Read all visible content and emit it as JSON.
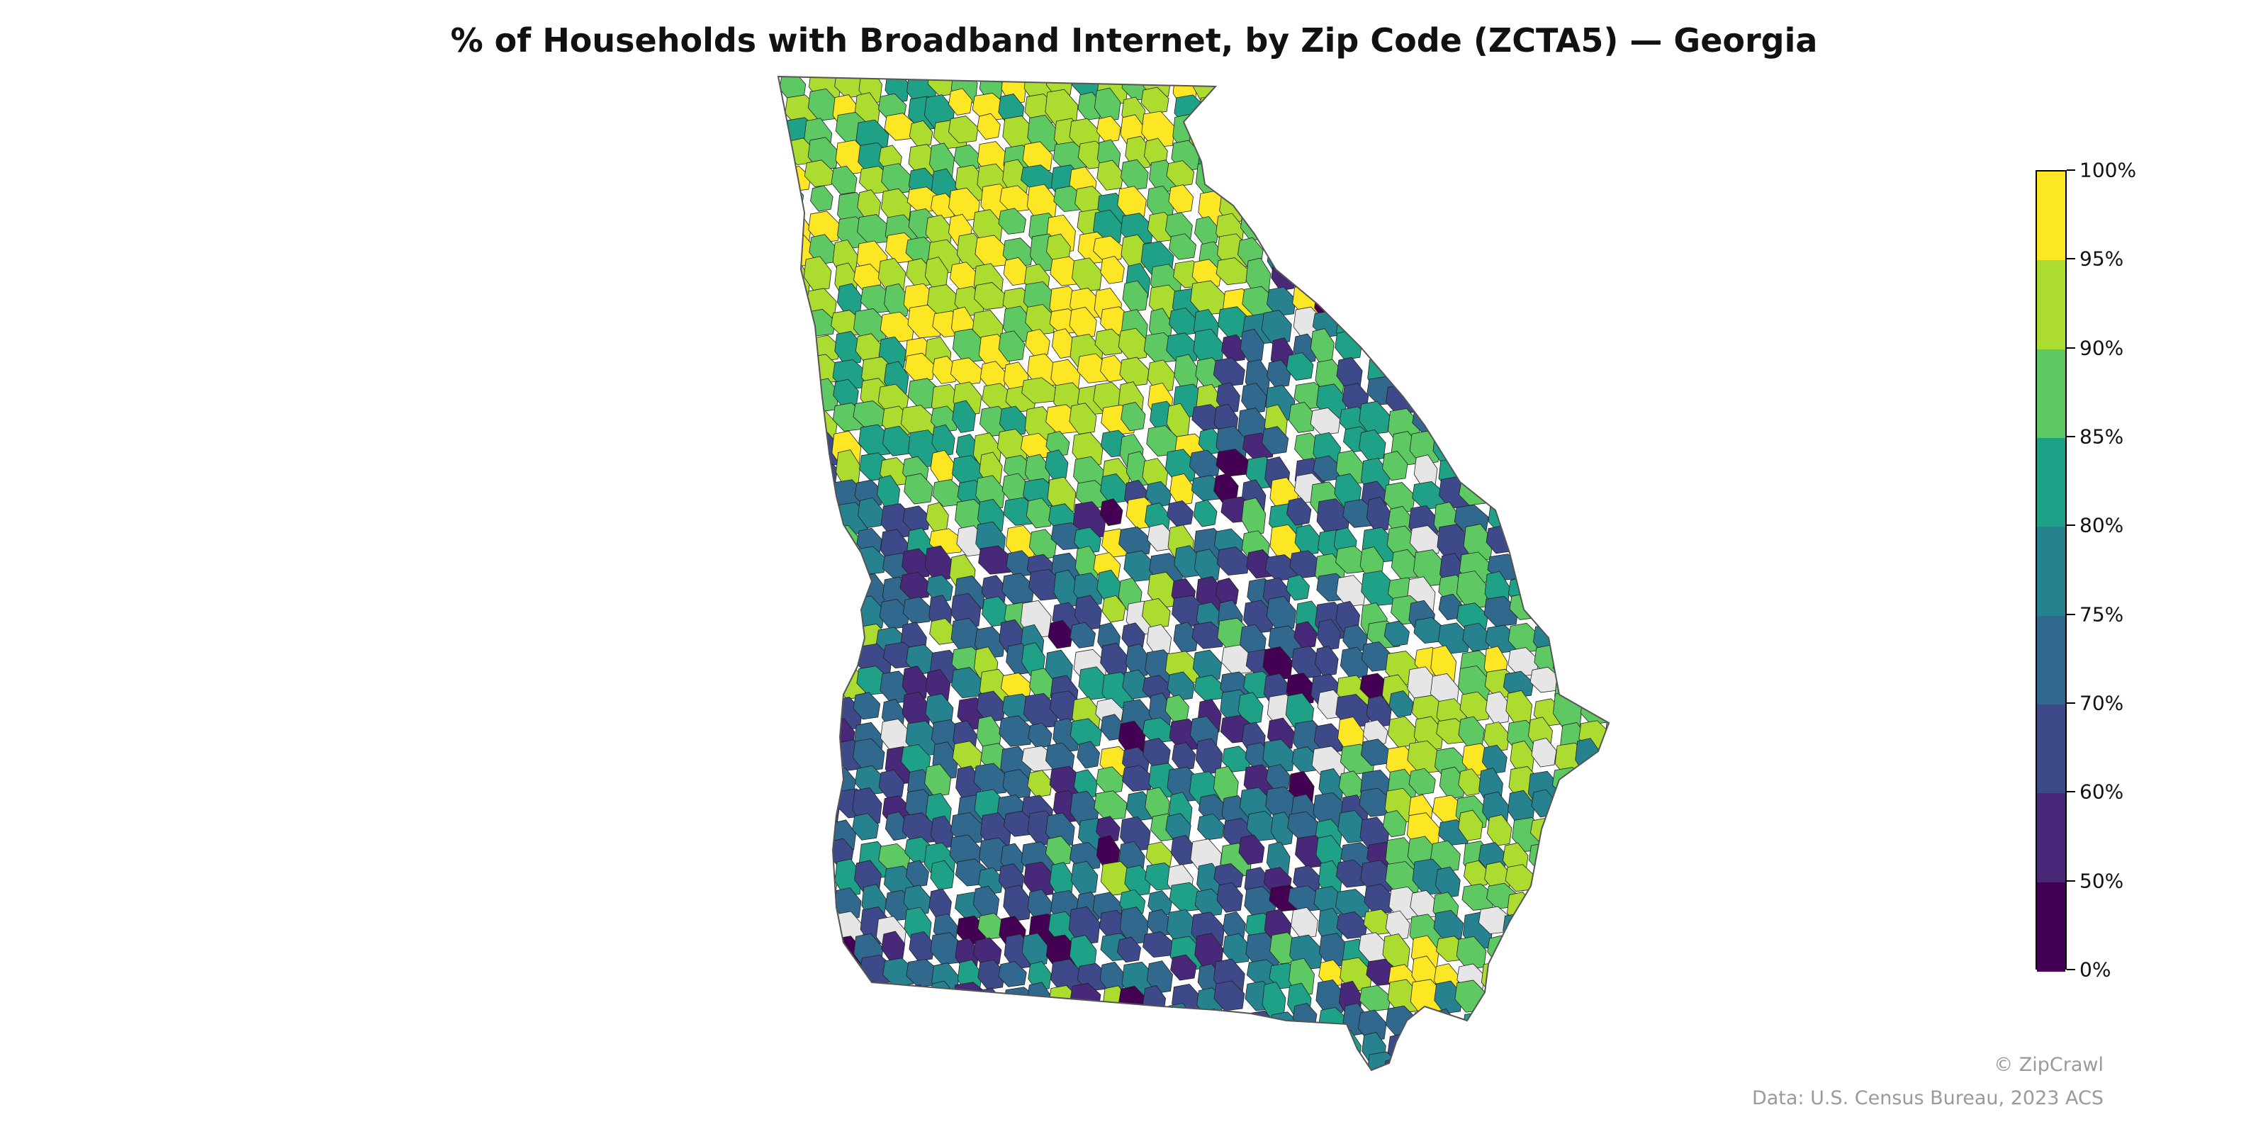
{
  "title": "% of Households with Broadband Internet, by Zip Code (ZCTA5) — Georgia",
  "legend": {
    "bins": [
      {
        "from": 0,
        "to": 50,
        "color": "#440154"
      },
      {
        "from": 50,
        "to": 60,
        "color": "#482878"
      },
      {
        "from": 60,
        "to": 70,
        "color": "#3e4989"
      },
      {
        "from": 70,
        "to": 75,
        "color": "#31688e"
      },
      {
        "from": 75,
        "to": 80,
        "color": "#26828e"
      },
      {
        "from": 80,
        "to": 85,
        "color": "#1fa187"
      },
      {
        "from": 85,
        "to": 90,
        "color": "#5ec962"
      },
      {
        "from": 90,
        "to": 95,
        "color": "#addc30"
      },
      {
        "from": 95,
        "to": 100,
        "color": "#fde725"
      }
    ],
    "tick_labels": [
      "100%",
      "95%",
      "90%",
      "85%",
      "80%",
      "75%",
      "70%",
      "60%",
      "50%",
      "0%"
    ]
  },
  "no_data_color": "#e6e6e6",
  "credits": {
    "brand": "© ZipCrawl",
    "source": "Data: U.S. Census Bureau, 2023 ACS"
  }
}
